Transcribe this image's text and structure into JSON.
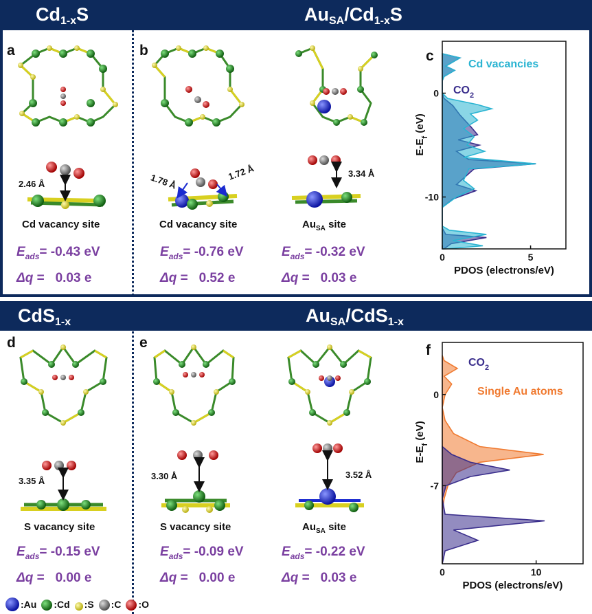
{
  "banner1": {
    "left_main": "Cd",
    "left_sub": "1-x",
    "left_tail": "S",
    "right_a": "Au",
    "right_a_sub": "SA",
    "right_b": "/Cd",
    "right_b_sub": "1-x",
    "right_c": "S"
  },
  "banner2": {
    "left_main": "CdS",
    "left_sub": "1-x",
    "right_a": "Au",
    "right_a_sub": "SA",
    "right_b": "/CdS",
    "right_b_sub": "1-x"
  },
  "panels": {
    "a": {
      "label": "a",
      "distance": "2.46 Å",
      "site": "Cd vacancy site",
      "eads_prefix": "E",
      "eads_sub": "ads",
      "eads_value": "= -0.43 eV",
      "dq_prefix": "Δq",
      "dq_value": " =   0.03 e"
    },
    "b1": {
      "label": "b",
      "distance_left": "1.78 Å",
      "distance_right": "1.72 Å",
      "site": "Cd vacancy site",
      "eads_prefix": "E",
      "eads_sub": "ads",
      "eads_value": "= -0.76 eV",
      "dq_prefix": "Δq",
      "dq_value": " =   0.52 e"
    },
    "b2": {
      "distance": "3.34 Å",
      "site_main": "Au",
      "site_sub": "SA",
      "site_tail": " site",
      "eads_prefix": "E",
      "eads_sub": "ads",
      "eads_value": "= -0.32 eV",
      "dq_prefix": "Δq",
      "dq_value": " =   0.03 e"
    },
    "d": {
      "label": "d",
      "distance": "3.35 Å",
      "site": "S vacancy site",
      "eads_prefix": "E",
      "eads_sub": "ads",
      "eads_value": "= -0.15 eV",
      "dq_prefix": "Δq",
      "dq_value": " =   0.00 e"
    },
    "e1": {
      "label": "e",
      "distance": "3.30 Å",
      "site": "S vacancy site",
      "eads_prefix": "E",
      "eads_sub": "ads",
      "eads_value": "= -0.09 eV",
      "dq_prefix": "Δq",
      "dq_value": " =   0.00 e"
    },
    "e2": {
      "distance": "3.52 Å",
      "site_main": "Au",
      "site_sub": "SA",
      "site_tail": " site",
      "eads_prefix": "E",
      "eads_sub": "ads",
      "eads_value": "= -0.22 eV",
      "dq_prefix": "Δq",
      "dq_value": " =   0.03 e"
    }
  },
  "legend": [
    {
      "label": ":Au",
      "color": "#1f2fe0"
    },
    {
      "label": ":Cd",
      "color": "#1e8a1e"
    },
    {
      "label": ":S",
      "color": "#e8e030"
    },
    {
      "label": ":C",
      "color": "#808080"
    },
    {
      "label": ":O",
      "color": "#e01010"
    }
  ],
  "colors": {
    "banner": "#0d2a5c",
    "co2": "#3a2e8c",
    "cd_vac": "#2ab4d2",
    "au_atoms": "#f07a30",
    "text_purple": "#7a3fa0"
  },
  "chart_data": [
    {
      "type": "area",
      "panel_label": "c",
      "xlabel": "PDOS (electrons/eV)",
      "ylabel": "E-E",
      "ylabel_sub": "f",
      "ylabel_unit": " (eV)",
      "xticks": [
        "0",
        "5"
      ],
      "yticks": [
        "0",
        "-10"
      ],
      "xlim": [
        0,
        7
      ],
      "ylim": [
        -15,
        5
      ],
      "series": [
        {
          "name": "CO",
          "name_sub": "2",
          "color": "#3a2e8c",
          "points": [
            [
              0,
              3.8
            ],
            [
              1,
              3.4
            ],
            [
              0.2,
              2.6
            ],
            [
              0.7,
              2.2
            ],
            [
              0.1,
              1.6
            ],
            [
              0,
              1.2
            ],
            [
              0,
              0
            ],
            [
              0.1,
              -0.5
            ],
            [
              0.6,
              -1.2
            ],
            [
              1,
              -2.1
            ],
            [
              1.6,
              -3.2
            ],
            [
              2,
              -4
            ],
            [
              0.9,
              -4.5
            ],
            [
              2.1,
              -5
            ],
            [
              0.8,
              -5.6
            ],
            [
              1.5,
              -6.4
            ],
            [
              5.3,
              -6.8
            ],
            [
              1.8,
              -7.3
            ],
            [
              0.8,
              -8.8
            ],
            [
              1.9,
              -9.4
            ],
            [
              0.6,
              -10.2
            ],
            [
              0,
              -11
            ],
            [
              0,
              -13
            ],
            [
              0.2,
              -13.6
            ],
            [
              2.5,
              -13.9
            ],
            [
              0.5,
              -14.5
            ],
            [
              0.1,
              -15
            ]
          ]
        },
        {
          "name": "Cd vacancies",
          "color": "#2ab4d2",
          "points": [
            [
              0,
              3.8
            ],
            [
              1,
              3.4
            ],
            [
              0.2,
              2.6
            ],
            [
              0.7,
              2.2
            ],
            [
              0.1,
              1.6
            ],
            [
              0,
              1.2
            ],
            [
              0,
              0
            ],
            [
              0.3,
              -0.5
            ],
            [
              2,
              -1.1
            ],
            [
              2.8,
              -1.5
            ],
            [
              1.6,
              -2
            ],
            [
              2,
              -2.6
            ],
            [
              1.2,
              -3.4
            ],
            [
              1.8,
              -4.2
            ],
            [
              1.4,
              -5
            ],
            [
              2.4,
              -5.6
            ],
            [
              1.2,
              -6.2
            ],
            [
              5.3,
              -6.8
            ],
            [
              1.5,
              -7.3
            ],
            [
              1.2,
              -8.4
            ],
            [
              1.8,
              -9.2
            ],
            [
              0.8,
              -10
            ],
            [
              0,
              -11
            ],
            [
              0,
              -12.8
            ],
            [
              0.4,
              -13.2
            ],
            [
              2.5,
              -13.6
            ],
            [
              0.6,
              -14.2
            ],
            [
              2.3,
              -14.7
            ],
            [
              0.2,
              -15
            ]
          ]
        }
      ]
    },
    {
      "type": "area",
      "panel_label": "f",
      "xlabel": "PDOS (electrons/eV)",
      "ylabel": "E-E",
      "ylabel_sub": "f",
      "ylabel_unit": " (eV)",
      "xticks": [
        "0",
        "10"
      ],
      "yticks": [
        "0",
        "-7"
      ],
      "xlim": [
        0,
        15
      ],
      "ylim": [
        -13,
        4
      ],
      "series": [
        {
          "name": "Single Au atoms",
          "color": "#f07a30",
          "points": [
            [
              0,
              3
            ],
            [
              0.2,
              2.6
            ],
            [
              1.6,
              2
            ],
            [
              0.2,
              1.4
            ],
            [
              1,
              0.8
            ],
            [
              0.3,
              0
            ],
            [
              0,
              -1
            ],
            [
              0.3,
              -2
            ],
            [
              1.2,
              -3
            ],
            [
              4,
              -4
            ],
            [
              10.8,
              -4.6
            ],
            [
              4,
              -5.2
            ],
            [
              1.5,
              -6
            ],
            [
              0.6,
              -7
            ],
            [
              0.2,
              -8
            ],
            [
              0,
              -9
            ],
            [
              0,
              -13
            ]
          ]
        },
        {
          "name": "CO",
          "name_sub": "2",
          "color": "#3a2e8c",
          "points": [
            [
              0,
              -4
            ],
            [
              1,
              -4.6
            ],
            [
              3,
              -5.2
            ],
            [
              7.2,
              -5.8
            ],
            [
              3,
              -6.3
            ],
            [
              0.4,
              -7
            ],
            [
              0,
              -8
            ],
            [
              0.3,
              -9.2
            ],
            [
              10.9,
              -9.7
            ],
            [
              1.2,
              -10.4
            ],
            [
              3.8,
              -11.2
            ],
            [
              0.3,
              -12
            ],
            [
              0,
              -13
            ]
          ]
        }
      ]
    }
  ]
}
